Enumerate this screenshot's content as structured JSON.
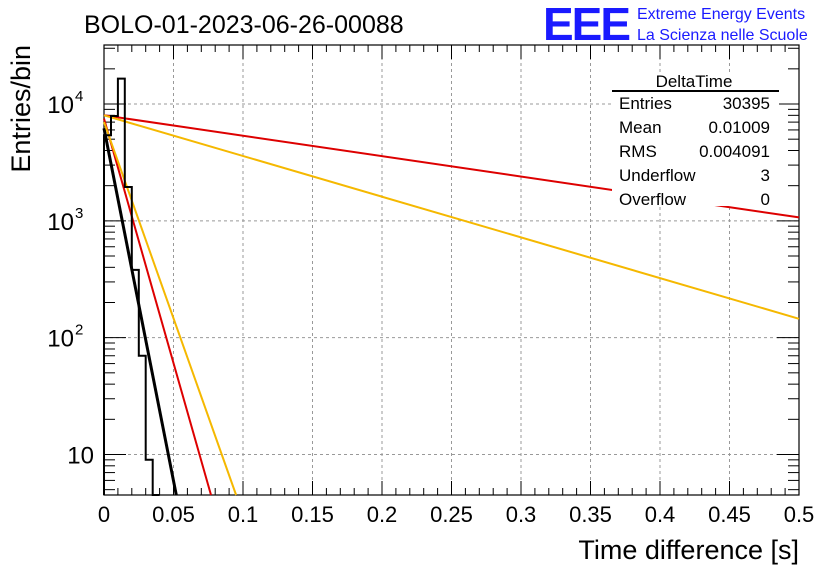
{
  "header": {
    "title": "BOLO-01-2023-06-26-00088",
    "logo": {
      "letters": "EEE",
      "line1": "Extreme Energy Events",
      "line2": "La Scienza nelle Scuole",
      "color": "#1a1aff"
    }
  },
  "stats_box": {
    "name": "DeltaTime",
    "rows": [
      {
        "label": "Entries",
        "value": "30395"
      },
      {
        "label": "Mean",
        "value": "0.01009"
      },
      {
        "label": "RMS",
        "value": "0.004091"
      },
      {
        "label": "Underflow",
        "value": "3"
      },
      {
        "label": "Overflow",
        "value": "0"
      }
    ]
  },
  "chart_data": {
    "type": "line",
    "title": "BOLO-01-2023-06-26-00088",
    "xlabel": "Time difference [s]",
    "ylabel": "Entries/bin",
    "xlim": [
      0,
      0.5
    ],
    "ylim": [
      4.5,
      32000
    ],
    "ylog": true,
    "grid": true,
    "x_ticks": [
      "0",
      "0.05",
      "0.1",
      "0.15",
      "0.2",
      "0.25",
      "0.3",
      "0.35",
      "0.4",
      "0.45",
      "0.5"
    ],
    "y_ticks": [
      {
        "value": 10,
        "base": "10",
        "exp": ""
      },
      {
        "value": 100,
        "base": "10",
        "exp": "2"
      },
      {
        "value": 1000,
        "base": "10",
        "exp": "3"
      },
      {
        "value": 10000,
        "base": "10",
        "exp": "4"
      }
    ],
    "histogram": {
      "name": "DeltaTime",
      "color": "#000000",
      "bin_width": 0.005,
      "x_start": 0,
      "counts": [
        5400,
        7900,
        16500,
        1950,
        380,
        70,
        9,
        4.5
      ]
    },
    "series": [
      {
        "color": "#000000",
        "x": [
          0,
          0.052
        ],
        "y": [
          6200,
          4.3
        ]
      },
      {
        "color": "#dd0000",
        "x": [
          0,
          0.077
        ],
        "y": [
          7500,
          4.3
        ]
      },
      {
        "color": "#f5b800",
        "x": [
          0,
          0.095
        ],
        "y": [
          7000,
          4.3
        ]
      },
      {
        "color": "#dd0000",
        "x": [
          0,
          0.5
        ],
        "y": [
          8000,
          1070
        ]
      },
      {
        "color": "#f5b800",
        "x": [
          0,
          0.5
        ],
        "y": [
          8000,
          145
        ]
      }
    ]
  }
}
